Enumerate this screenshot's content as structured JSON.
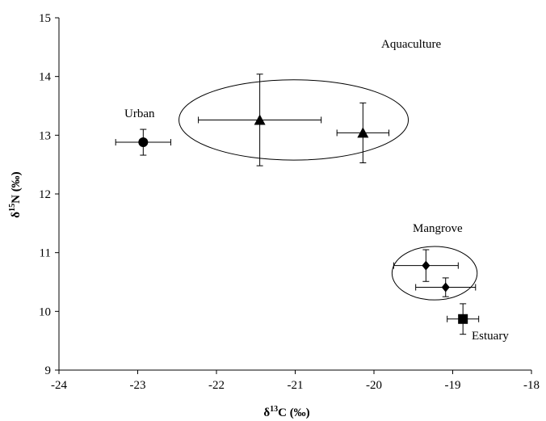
{
  "chart_data": {
    "type": "scatter",
    "title": "",
    "xlabel": {
      "prefix": "δ",
      "sup": "13",
      "suffix": "C (‰)"
    },
    "ylabel": {
      "prefix": "δ",
      "sup": "15",
      "suffix": "N (‰)"
    },
    "xlim": [
      -24,
      -18
    ],
    "ylim": [
      9,
      15
    ],
    "xticks": [
      "-24",
      "-23",
      "-22",
      "-21",
      "-20",
      "-19",
      "-18"
    ],
    "yticks": [
      "9",
      "10",
      "11",
      "12",
      "13",
      "14",
      "15"
    ],
    "grid": false,
    "legend": "none",
    "points": [
      {
        "group": "Urban",
        "marker": "circle",
        "x": -22.93,
        "y": 12.88,
        "x_err": 0.35,
        "y_err": 0.22
      },
      {
        "group": "Aquaculture",
        "marker": "triangle",
        "x": -21.45,
        "y": 13.26,
        "x_err": 0.78,
        "y_err": 0.78
      },
      {
        "group": "Aquaculture",
        "marker": "triangle",
        "x": -20.14,
        "y": 13.04,
        "x_err": 0.33,
        "y_err": 0.51
      },
      {
        "group": "Mangrove",
        "marker": "diamond",
        "x": -19.34,
        "y": 10.78,
        "x_err": 0.41,
        "y_err": 0.27
      },
      {
        "group": "Mangrove",
        "marker": "diamond",
        "x": -19.09,
        "y": 10.41,
        "x_err": 0.38,
        "y_err": 0.16
      },
      {
        "group": "Estuary",
        "marker": "square",
        "x": -18.87,
        "y": 9.87,
        "x_err": 0.2,
        "y_err": 0.26
      }
    ],
    "group_labels": [
      "Aquaculture",
      "Urban",
      "Mangrove",
      "Estuary"
    ]
  }
}
